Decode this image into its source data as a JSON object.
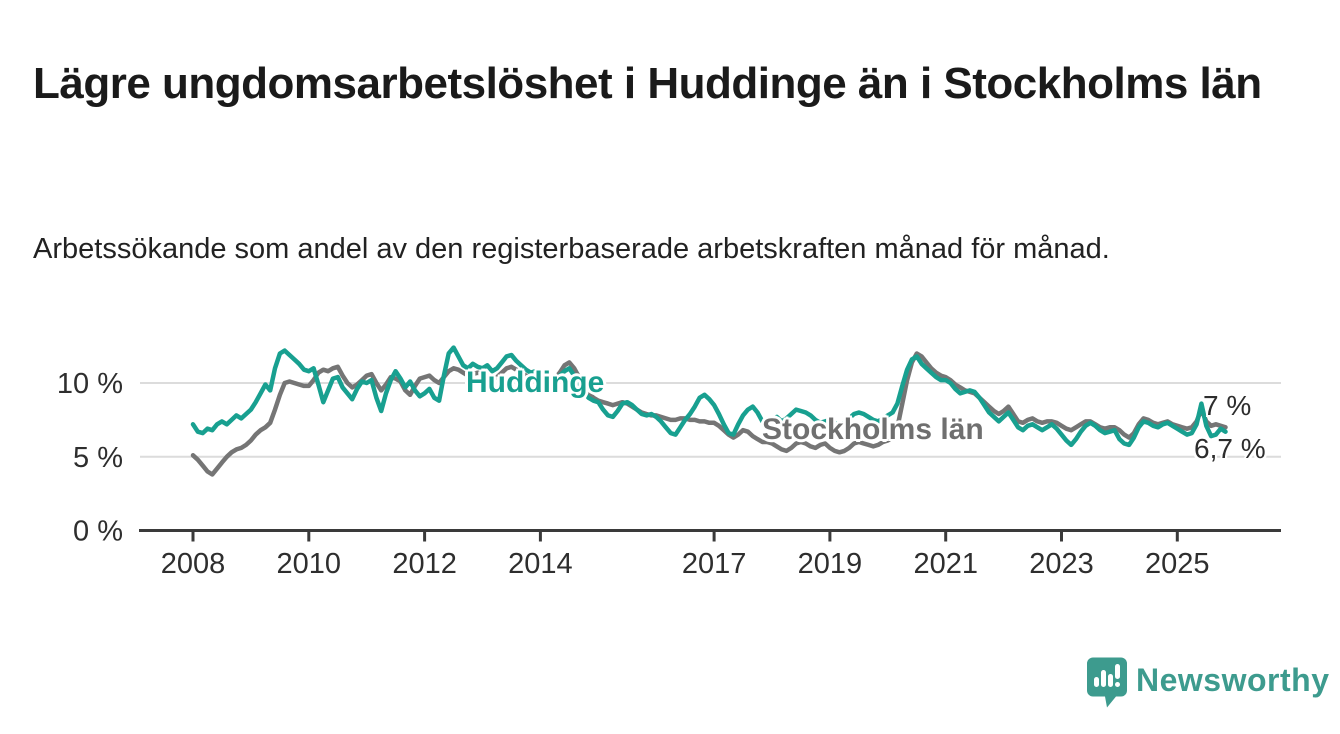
{
  "header": {
    "title": "Lägre ungdomsarbetslöshet i Huddinge än i Stockholms län",
    "subtitle": "Arbetssökande som andel av den registerbaserade arbetskraften månad för månad."
  },
  "chart_data": {
    "type": "line",
    "title": "Lägre ungdomsarbetslöshet i Huddinge än i Stockholms län",
    "xlabel": "",
    "ylabel": "",
    "unit": "%",
    "frequency": "monthly",
    "x_start": "2008-01",
    "x_end": "2025-11",
    "x_ticks": [
      2008,
      2010,
      2012,
      2014,
      2017,
      2019,
      2021,
      2023,
      2025
    ],
    "y_ticks": [
      {
        "value": 0,
        "label": "0 %"
      },
      {
        "value": 5,
        "label": "5 %"
      },
      {
        "value": 10,
        "label": "10 %"
      }
    ],
    "ylim": [
      0,
      13
    ],
    "grid": "horizontal",
    "legend_position": "inline-annotations",
    "axis_color": "#3a3a3a",
    "grid_color": "#dcdcdc",
    "series": [
      {
        "name": "Stockholms län",
        "color": "#757575",
        "end_label": "7 %",
        "last_value": 7.0,
        "values": [
          5.1,
          4.8,
          4.4,
          4.0,
          3.8,
          4.2,
          4.6,
          5.0,
          5.3,
          5.5,
          5.6,
          5.8,
          6.1,
          6.5,
          6.8,
          7.0,
          7.3,
          8.2,
          9.2,
          10.0,
          10.1,
          10.0,
          9.9,
          9.8,
          9.8,
          10.2,
          10.7,
          10.9,
          10.8,
          11.0,
          11.1,
          10.5,
          10.0,
          9.7,
          9.9,
          10.2,
          10.5,
          10.6,
          10.0,
          9.5,
          9.9,
          10.4,
          10.3,
          10.1,
          9.5,
          9.2,
          9.8,
          10.3,
          10.4,
          10.5,
          10.2,
          10.0,
          10.4,
          10.8,
          11.0,
          10.9,
          10.7,
          10.5,
          10.6,
          10.7,
          10.6,
          10.4,
          10.2,
          10.4,
          10.7,
          11.0,
          11.1,
          10.9,
          10.7,
          10.5,
          10.4,
          10.5,
          10.4,
          10.2,
          10.1,
          10.3,
          10.7,
          11.2,
          11.4,
          11.0,
          10.4,
          9.8,
          9.3,
          9.0,
          8.8,
          8.7,
          8.6,
          8.5,
          8.6,
          8.7,
          8.6,
          8.4,
          8.2,
          8.0,
          7.9,
          7.8,
          7.8,
          7.7,
          7.6,
          7.5,
          7.5,
          7.6,
          7.6,
          7.5,
          7.5,
          7.4,
          7.4,
          7.3,
          7.3,
          7.1,
          6.8,
          6.5,
          6.3,
          6.5,
          6.8,
          6.7,
          6.4,
          6.2,
          6.0,
          6.0,
          5.9,
          5.7,
          5.5,
          5.4,
          5.6,
          5.9,
          6.0,
          5.9,
          5.7,
          5.6,
          5.8,
          5.9,
          5.6,
          5.4,
          5.3,
          5.4,
          5.6,
          5.9,
          6.0,
          5.9,
          5.8,
          5.7,
          5.8,
          6.0,
          6.1,
          6.3,
          7.0,
          8.6,
          10.2,
          11.4,
          12.0,
          11.8,
          11.4,
          11.0,
          10.7,
          10.5,
          10.4,
          10.2,
          9.9,
          9.7,
          9.5,
          9.4,
          9.3,
          9.0,
          8.7,
          8.4,
          8.1,
          7.9,
          8.1,
          8.4,
          7.9,
          7.4,
          7.3,
          7.5,
          7.6,
          7.4,
          7.3,
          7.4,
          7.4,
          7.3,
          7.1,
          6.9,
          6.8,
          7.0,
          7.2,
          7.4,
          7.4,
          7.2,
          7.0,
          6.9,
          7.0,
          7.0,
          6.8,
          6.5,
          6.3,
          6.6,
          7.2,
          7.6,
          7.5,
          7.3,
          7.2,
          7.3,
          7.4,
          7.2,
          7.1,
          7.0,
          6.9,
          7.0,
          7.4,
          8.2,
          7.4,
          7.1,
          7.2,
          7.1,
          7.0
        ]
      },
      {
        "name": "Huddinge",
        "color": "#18a090",
        "end_label": "6,7 %",
        "last_value": 6.7,
        "values": [
          7.2,
          6.7,
          6.6,
          6.9,
          6.8,
          7.2,
          7.4,
          7.2,
          7.5,
          7.8,
          7.6,
          7.9,
          8.2,
          8.7,
          9.3,
          9.9,
          9.5,
          11.0,
          12.0,
          12.2,
          11.9,
          11.6,
          11.3,
          10.9,
          10.8,
          11.0,
          9.9,
          8.7,
          9.5,
          10.3,
          10.4,
          9.7,
          9.3,
          8.9,
          9.6,
          10.1,
          10.0,
          10.2,
          9.0,
          8.1,
          9.3,
          10.2,
          10.8,
          10.3,
          9.7,
          10.1,
          9.5,
          9.1,
          9.3,
          9.6,
          9.0,
          8.8,
          10.5,
          12.0,
          12.4,
          11.8,
          11.2,
          11.0,
          11.3,
          11.1,
          11.0,
          11.2,
          10.8,
          11.0,
          11.4,
          11.8,
          11.9,
          11.5,
          11.2,
          10.9,
          10.7,
          10.8,
          10.6,
          10.3,
          10.0,
          10.2,
          10.5,
          10.8,
          11.0,
          10.5,
          9.9,
          9.4,
          9.0,
          8.8,
          8.7,
          8.2,
          7.8,
          7.7,
          8.1,
          8.6,
          8.7,
          8.5,
          8.2,
          7.9,
          7.8,
          7.9,
          7.7,
          7.4,
          7.0,
          6.6,
          6.5,
          7.0,
          7.5,
          7.9,
          8.4,
          9.0,
          9.2,
          8.9,
          8.5,
          7.9,
          7.2,
          6.6,
          6.5,
          7.2,
          7.8,
          8.2,
          8.4,
          8.0,
          7.4,
          7.3,
          7.5,
          7.7,
          7.4,
          7.6,
          7.9,
          8.2,
          8.1,
          8.0,
          7.8,
          7.5,
          7.3,
          7.4,
          7.5,
          7.3,
          7.1,
          7.3,
          7.6,
          7.9,
          8.0,
          7.9,
          7.7,
          7.5,
          7.4,
          7.6,
          7.8,
          8.0,
          8.6,
          9.8,
          10.9,
          11.6,
          11.8,
          11.3,
          11.0,
          10.7,
          10.4,
          10.2,
          10.2,
          10.0,
          9.6,
          9.3,
          9.4,
          9.5,
          9.4,
          9.0,
          8.5,
          8.0,
          7.7,
          7.4,
          7.7,
          8.0,
          7.5,
          7.0,
          6.8,
          7.1,
          7.2,
          7.0,
          6.8,
          7.0,
          7.2,
          6.9,
          6.5,
          6.1,
          5.8,
          6.2,
          6.7,
          7.1,
          7.3,
          7.1,
          6.8,
          6.6,
          6.7,
          6.8,
          6.2,
          5.9,
          5.8,
          6.3,
          7.0,
          7.4,
          7.3,
          7.1,
          7.0,
          7.2,
          7.3,
          7.1,
          6.9,
          6.7,
          6.5,
          6.6,
          7.2,
          8.6,
          7.1,
          6.4,
          6.5,
          6.9,
          6.7
        ]
      }
    ]
  },
  "footer": {
    "brand": "Newsworthy",
    "brand_color": "#3d9b8e",
    "logo_icon": "newsworthy-speech-bubble-bar-chart"
  }
}
